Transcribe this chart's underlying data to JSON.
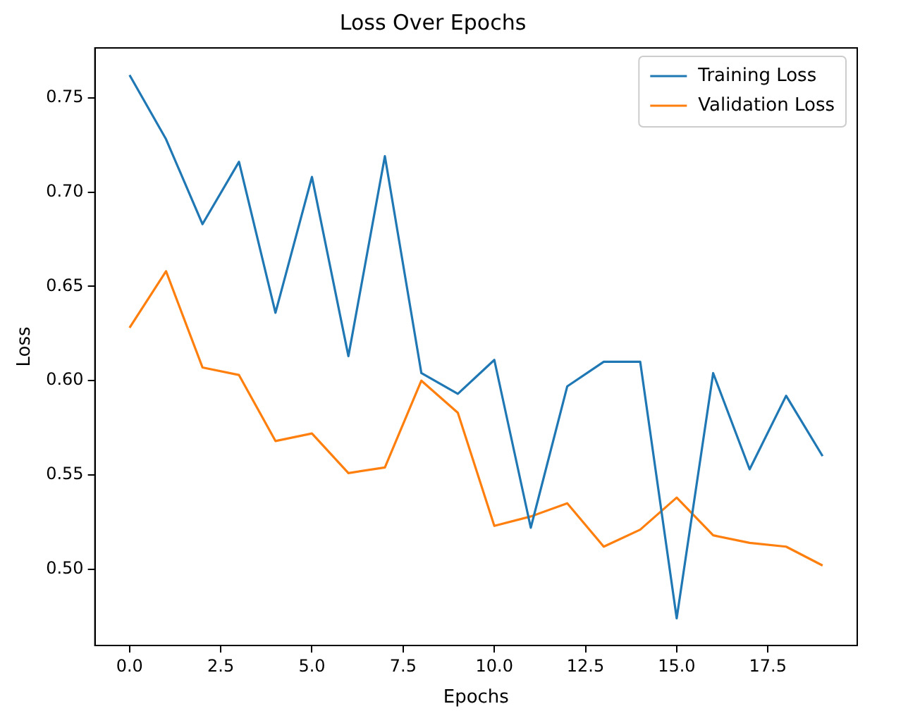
{
  "chart_data": {
    "type": "line",
    "title": "Loss Over Epochs",
    "xlabel": "Epochs",
    "ylabel": "Loss",
    "x": [
      0,
      1,
      2,
      3,
      4,
      5,
      6,
      7,
      8,
      9,
      10,
      11,
      12,
      13,
      14,
      15,
      16,
      17,
      18,
      19
    ],
    "series": [
      {
        "name": "Training Loss",
        "color": "#1f77b4",
        "values": [
          0.762,
          0.728,
          0.683,
          0.716,
          0.636,
          0.708,
          0.613,
          0.719,
          0.604,
          0.593,
          0.611,
          0.522,
          0.597,
          0.61,
          0.61,
          0.474,
          0.604,
          0.553,
          0.592,
          0.56
        ]
      },
      {
        "name": "Validation Loss",
        "color": "#ff7f0e",
        "values": [
          0.628,
          0.658,
          0.607,
          0.603,
          0.568,
          0.572,
          0.551,
          0.554,
          0.6,
          0.583,
          0.523,
          0.528,
          0.535,
          0.512,
          0.521,
          0.538,
          0.518,
          0.514,
          0.512,
          0.502
        ]
      }
    ],
    "xlim": [
      -0.95,
      19.95
    ],
    "xticks": [
      {
        "value": 0,
        "label": "0.0"
      },
      {
        "value": 2.5,
        "label": "2.5"
      },
      {
        "value": 5,
        "label": "5.0"
      },
      {
        "value": 7.5,
        "label": "7.5"
      },
      {
        "value": 10,
        "label": "10.0"
      },
      {
        "value": 12.5,
        "label": "12.5"
      },
      {
        "value": 15,
        "label": "15.0"
      },
      {
        "value": 17.5,
        "label": "17.5"
      }
    ],
    "ylim": [
      0.4596,
      0.7764
    ],
    "yticks": [
      {
        "value": 0.5,
        "label": "0.50"
      },
      {
        "value": 0.55,
        "label": "0.55"
      },
      {
        "value": 0.6,
        "label": "0.60"
      },
      {
        "value": 0.65,
        "label": "0.65"
      },
      {
        "value": 0.7,
        "label": "0.70"
      },
      {
        "value": 0.75,
        "label": "0.75"
      }
    ],
    "grid": false,
    "legend": "top right",
    "marker": "none",
    "line_style": "solid"
  }
}
